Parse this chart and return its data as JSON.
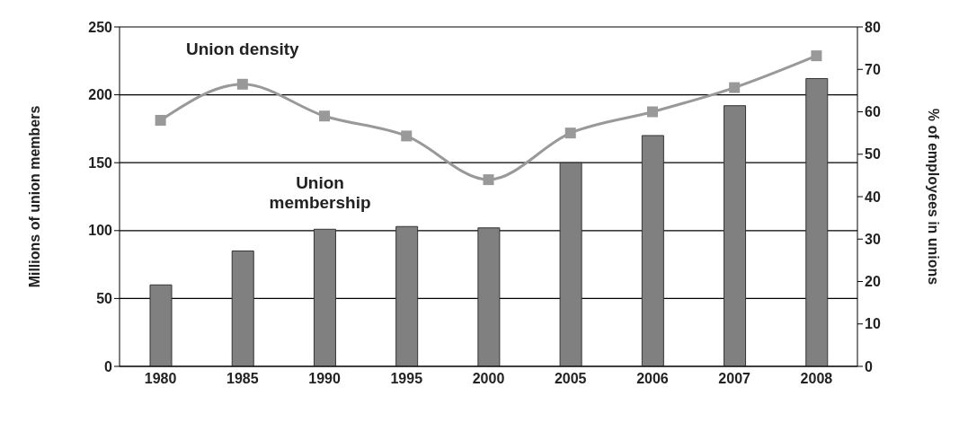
{
  "chart_data": {
    "type": "bar",
    "categories": [
      "1980",
      "1985",
      "1990",
      "1995",
      "2000",
      "2005",
      "2006",
      "2007",
      "2008"
    ],
    "ylabel": "Millions of union members",
    "y2label": "% of employees in unions",
    "series": [
      {
        "name": "Union membership",
        "color": "#808080",
        "values": [
          60,
          85,
          101,
          103,
          102,
          150,
          170,
          192,
          212
        ]
      },
      {
        "name": "Union density",
        "type": "line",
        "axis": "y2",
        "color": "#999999",
        "values": [
          58,
          66.5,
          59,
          54.3,
          44,
          55,
          60,
          65.7,
          73.2
        ]
      }
    ],
    "ylim": [
      0,
      250
    ],
    "yticks": [
      0,
      50,
      100,
      150,
      200,
      250
    ],
    "y2lim": [
      0,
      80
    ],
    "y2ticks": [
      0,
      10,
      20,
      30,
      40,
      50,
      60,
      70,
      80
    ],
    "grid": "y",
    "marker": "square",
    "line_style": "solid"
  }
}
